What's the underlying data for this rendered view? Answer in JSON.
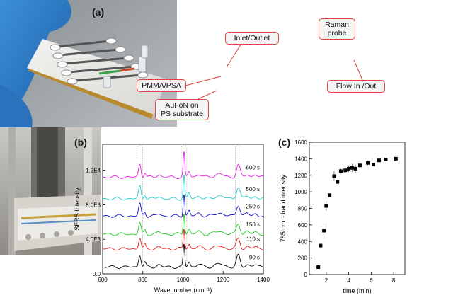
{
  "panels": {
    "a": "(a)",
    "b": "(b)",
    "c": "(c)"
  },
  "callouts": {
    "inlet_outlet": "Inlet/Outlet",
    "pmma_psa": "PMMA/PSA",
    "aufon_line1": "AuFoN on",
    "aufon_line2": "PS substrate",
    "raman_line1": "Raman",
    "raman_line2": "probe",
    "flow": "Flow In /Out"
  },
  "colors": {
    "callout_border": "#e0443e",
    "axis": "#000000"
  },
  "chart_data": [
    {
      "type": "line",
      "panel": "(b)",
      "xlabel": "Wavenumber (cm⁻¹)",
      "ylabel": "SERS Intensity",
      "xlim": [
        600,
        1400
      ],
      "ylim": [
        0,
        15000
      ],
      "xticks": [
        "600",
        "800",
        "1000",
        "1200",
        "1400"
      ],
      "yticks": [
        "0.0",
        "4.0E3",
        "8.0E3",
        "1.2E4"
      ],
      "ytick_values": [
        0,
        4000,
        8000,
        12000
      ],
      "grid": false,
      "peaks_marked": [
        785,
        1005,
        1275
      ],
      "series": [
        {
          "name": "90 s",
          "color": "#000000",
          "baseline": 800,
          "peak_scale": 1.0
        },
        {
          "name": "110 s",
          "color": "#e41a1c",
          "baseline": 2900,
          "peak_scale": 0.9
        },
        {
          "name": "150 s",
          "color": "#22cc22",
          "baseline": 4600,
          "peak_scale": 0.95
        },
        {
          "name": "250 s",
          "color": "#1010c8",
          "baseline": 6700,
          "peak_scale": 1.0
        },
        {
          "name": "500 s",
          "color": "#22cccc",
          "baseline": 8700,
          "peak_scale": 1.05
        },
        {
          "name": "600 s",
          "color": "#e020e0",
          "baseline": 11200,
          "peak_scale": 1.1
        }
      ]
    },
    {
      "type": "scatter",
      "panel": "(c)",
      "xlabel": "time (min)",
      "ylabel": "785 cm⁻¹ band intensity",
      "xlim": [
        0.5,
        9
      ],
      "ylim": [
        0,
        1600
      ],
      "xticks": [
        "2",
        "4",
        "6",
        "8"
      ],
      "xtick_values": [
        2,
        4,
        6,
        8
      ],
      "yticks": [
        "0",
        "200",
        "400",
        "600",
        "800",
        "1000",
        "1200",
        "1400",
        "1600"
      ],
      "ytick_values": [
        0,
        200,
        400,
        600,
        800,
        1000,
        1200,
        1400,
        1600
      ],
      "grid": false,
      "points": [
        {
          "x": 1.3,
          "y": 90,
          "err": 0
        },
        {
          "x": 1.5,
          "y": 350,
          "err": 20
        },
        {
          "x": 1.8,
          "y": 530,
          "err": 90
        },
        {
          "x": 2.0,
          "y": 830,
          "err": 60
        },
        {
          "x": 2.3,
          "y": 960,
          "err": 0
        },
        {
          "x": 2.7,
          "y": 1190,
          "err": 60
        },
        {
          "x": 3.0,
          "y": 1120,
          "err": 20
        },
        {
          "x": 3.3,
          "y": 1250,
          "err": 30
        },
        {
          "x": 3.7,
          "y": 1260,
          "err": 30
        },
        {
          "x": 4.0,
          "y": 1280,
          "err": 40
        },
        {
          "x": 4.3,
          "y": 1290,
          "err": 50
        },
        {
          "x": 4.6,
          "y": 1280,
          "err": 50
        },
        {
          "x": 5.0,
          "y": 1320,
          "err": 30
        },
        {
          "x": 5.7,
          "y": 1350,
          "err": 30
        },
        {
          "x": 6.2,
          "y": 1330,
          "err": 20
        },
        {
          "x": 6.7,
          "y": 1380,
          "err": 30
        },
        {
          "x": 7.3,
          "y": 1390,
          "err": 20
        },
        {
          "x": 8.2,
          "y": 1400,
          "err": 20
        }
      ]
    }
  ]
}
